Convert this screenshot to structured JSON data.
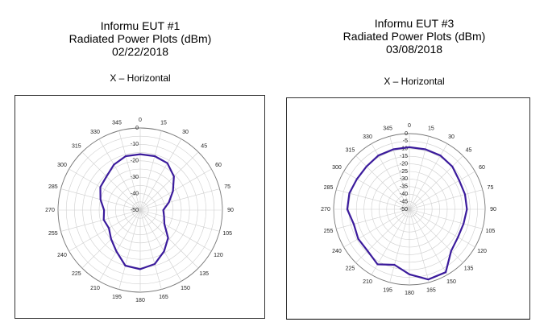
{
  "chart_data": [
    {
      "type": "polar_line",
      "title_lines": [
        "Informu EUT #1",
        "Radiated Power Plots (dBm)",
        "02/22/2018"
      ],
      "subtitle": "X – Horizontal",
      "angle_ticks": [
        0,
        15,
        30,
        45,
        60,
        75,
        90,
        105,
        120,
        135,
        150,
        165,
        180,
        195,
        210,
        225,
        240,
        255,
        270,
        285,
        300,
        315,
        330,
        345
      ],
      "radial_labels": [
        0,
        -10,
        -20,
        -30,
        -40,
        -50
      ],
      "r_range": [
        -50,
        0
      ],
      "color": "#3b1b9c",
      "series": [
        {
          "angles": [
            0,
            15,
            30,
            45,
            60,
            75,
            90,
            105,
            120,
            135,
            150,
            165,
            180,
            195,
            210,
            225,
            240,
            255,
            270,
            285,
            300,
            315,
            330,
            345
          ],
          "values": [
            -16,
            -16,
            -17,
            -21,
            -27,
            -32,
            -36,
            -35,
            -33,
            -26,
            -21,
            -16,
            -14,
            -15,
            -21,
            -25,
            -28,
            -27,
            -28,
            -25,
            -22,
            -21,
            -18,
            -16
          ]
        }
      ]
    },
    {
      "type": "polar_line",
      "title_lines": [
        "Informu EUT #3",
        "Radiated Power Plots (dBm)",
        "03/08/2018"
      ],
      "subtitle": "X – Horizontal",
      "angle_ticks": [
        0,
        15,
        30,
        45,
        60,
        75,
        90,
        105,
        120,
        135,
        150,
        165,
        180,
        195,
        210,
        225,
        240,
        255,
        270,
        285,
        300,
        315,
        330,
        345
      ],
      "radial_labels": [
        0,
        -5,
        -10,
        -15,
        -20,
        -25,
        -30,
        -35,
        -40,
        -45,
        -50
      ],
      "r_range": [
        -50,
        0
      ],
      "color": "#3b1b9c",
      "series": [
        {
          "angles": [
            0,
            15,
            30,
            45,
            60,
            75,
            90,
            105,
            120,
            135,
            150,
            165,
            180,
            195,
            210,
            225,
            240,
            255,
            270,
            285,
            300,
            315,
            330,
            345
          ],
          "values": [
            -9,
            -9,
            -9,
            -10,
            -12,
            -12,
            -12,
            -13,
            -13,
            -11,
            -2,
            -2,
            -7,
            -12,
            -8,
            -11,
            -11,
            -12,
            -9,
            -9,
            -10,
            -10,
            -9,
            -9
          ]
        }
      ]
    }
  ]
}
